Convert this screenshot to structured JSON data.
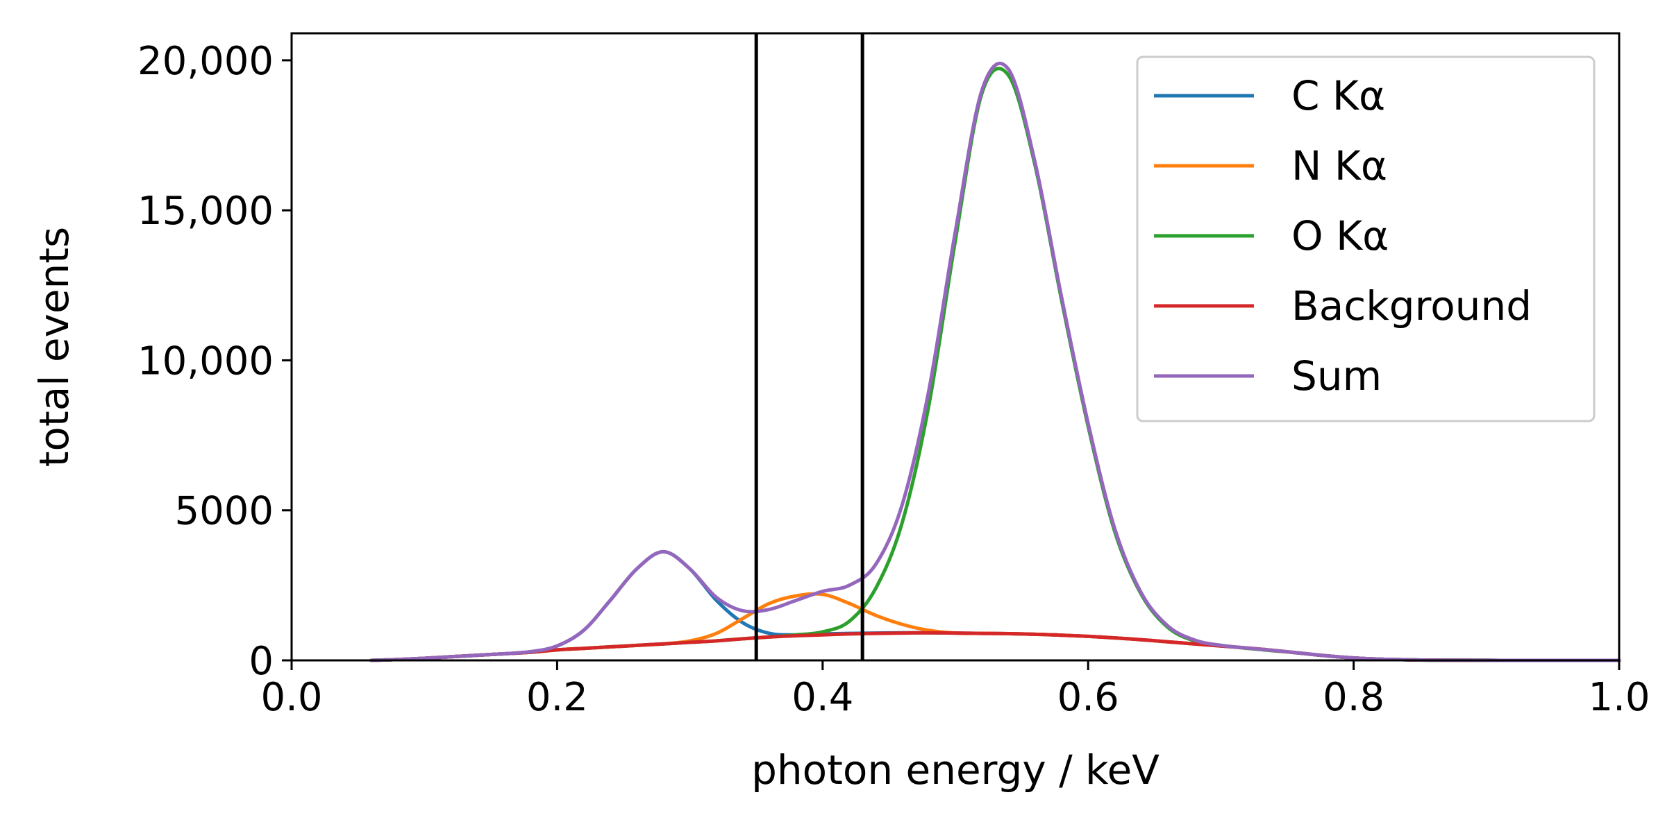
{
  "chart_data": {
    "type": "line",
    "title": "",
    "xlabel": "photon energy / keV",
    "ylabel": "total events",
    "xlim": [
      0.0,
      1.0
    ],
    "ylim": [
      0,
      20900
    ],
    "xticks": [
      0.0,
      0.2,
      0.4,
      0.6,
      0.8,
      1.0
    ],
    "xtick_labels": [
      "0.0",
      "0.2",
      "0.4",
      "0.6",
      "0.8",
      "1.0"
    ],
    "yticks": [
      0,
      5000,
      10000,
      15000,
      20000
    ],
    "ytick_labels": [
      "0",
      "5000",
      "10,000",
      "15,000",
      "20,000"
    ],
    "grid": false,
    "legend_position": "top-right",
    "vertical_lines": [
      0.35,
      0.43
    ],
    "x": [
      0.06,
      0.08,
      0.1,
      0.12,
      0.14,
      0.16,
      0.18,
      0.2,
      0.22,
      0.24,
      0.26,
      0.28,
      0.3,
      0.32,
      0.34,
      0.36,
      0.38,
      0.4,
      0.42,
      0.44,
      0.46,
      0.48,
      0.5,
      0.52,
      0.54,
      0.56,
      0.58,
      0.6,
      0.62,
      0.64,
      0.66,
      0.68,
      0.7,
      0.72,
      0.74,
      0.76,
      0.78,
      0.8,
      0.82,
      0.84,
      0.86,
      0.88,
      0.9,
      0.92,
      0.94,
      0.96,
      0.98,
      1.0
    ],
    "series": [
      {
        "name": "C Kα",
        "color": "#1f77b4",
        "values": [
          0,
          30,
          70,
          120,
          170,
          220,
          290,
          480,
          1000,
          2000,
          3050,
          3620,
          3050,
          2000,
          1250,
          900,
          850,
          880,
          900,
          910,
          920,
          920,
          910,
          900,
          890,
          870,
          840,
          800,
          750,
          690,
          620,
          550,
          480,
          410,
          330,
          240,
          150,
          80,
          40,
          20,
          10,
          5,
          2,
          0,
          0,
          0,
          0,
          0
        ]
      },
      {
        "name": "N Kα",
        "color": "#ff7f0e",
        "values": [
          0,
          30,
          70,
          120,
          170,
          220,
          270,
          350,
          400,
          450,
          500,
          550,
          650,
          900,
          1400,
          1900,
          2150,
          2200,
          1900,
          1500,
          1200,
          1000,
          910,
          900,
          890,
          870,
          840,
          800,
          750,
          690,
          620,
          550,
          480,
          410,
          330,
          240,
          150,
          80,
          40,
          20,
          10,
          5,
          2,
          0,
          0,
          0,
          0,
          0
        ]
      },
      {
        "name": "O Kα",
        "color": "#2ca02c",
        "values": [
          0,
          30,
          70,
          120,
          170,
          220,
          270,
          350,
          400,
          450,
          500,
          550,
          600,
          650,
          720,
          780,
          850,
          950,
          1300,
          2400,
          4600,
          8500,
          14000,
          18900,
          19500,
          16500,
          12000,
          7800,
          4300,
          2200,
          1100,
          650,
          500,
          400,
          320,
          240,
          150,
          80,
          40,
          20,
          10,
          5,
          2,
          0,
          0,
          0,
          0,
          0
        ]
      },
      {
        "name": "Background",
        "color": "#d62728",
        "values": [
          0,
          30,
          70,
          120,
          170,
          220,
          270,
          350,
          400,
          450,
          500,
          550,
          600,
          650,
          720,
          780,
          820,
          850,
          880,
          900,
          910,
          920,
          910,
          900,
          890,
          870,
          840,
          800,
          750,
          690,
          620,
          550,
          480,
          410,
          330,
          240,
          150,
          80,
          40,
          20,
          10,
          5,
          2,
          0,
          0,
          0,
          0,
          0
        ]
      },
      {
        "name": "Sum",
        "color": "#9467bd",
        "values": [
          0,
          30,
          70,
          120,
          170,
          220,
          290,
          480,
          1000,
          2000,
          3050,
          3620,
          3050,
          2100,
          1650,
          1700,
          2000,
          2300,
          2500,
          3200,
          5200,
          9000,
          14300,
          19000,
          19700,
          16600,
          12100,
          7900,
          4400,
          2250,
          1150,
          680,
          500,
          410,
          330,
          240,
          150,
          80,
          40,
          20,
          10,
          5,
          2,
          0,
          0,
          0,
          0,
          0
        ]
      }
    ]
  }
}
